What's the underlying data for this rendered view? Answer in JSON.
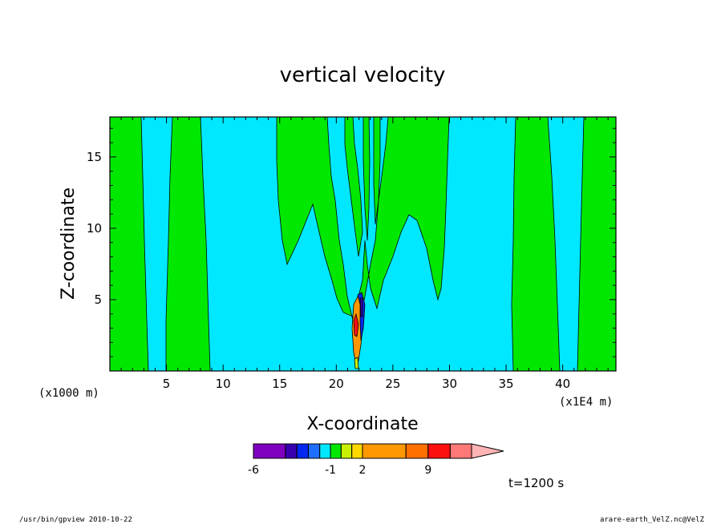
{
  "chart_data": {
    "type": "heatmap",
    "title": "vertical velocity",
    "xlabel": "X-coordinate",
    "ylabel": "Z-coordinate",
    "x_unit": "(x1000 m)",
    "x_scale_note": "(x1E4 m)",
    "xlim": [
      0,
      44.7
    ],
    "ylim": [
      0,
      17.8
    ],
    "x_ticks": [
      5,
      10,
      15,
      20,
      25,
      30,
      35,
      40
    ],
    "y_ticks": [
      5,
      10,
      15
    ],
    "colorbar": {
      "levels": [
        -6,
        -5,
        -4,
        -3,
        -2,
        -1,
        0,
        1,
        2,
        3,
        4,
        5,
        6,
        7,
        8,
        9,
        10
      ],
      "labeled_ticks": [
        "-6",
        "-1",
        "2",
        "9"
      ],
      "colors": [
        "#7f00bf",
        "#3800b0",
        "#0028f0",
        "#1e6fff",
        "#00e8ff",
        "#00e800",
        "#c8f000",
        "#ffd800",
        "#ff9800",
        "#ff7000",
        "#ff1010",
        "#ff7878",
        "#ffb4b4"
      ],
      "extend": "max"
    },
    "background_level_color": "#00e8ff",
    "positive_level_color": "#00e800"
  },
  "time_label": "t=1200 s",
  "footer": {
    "left": "/usr/bin/gpview   2010-10-22",
    "right": "arare-earth_VelZ.nc@VelZ"
  }
}
